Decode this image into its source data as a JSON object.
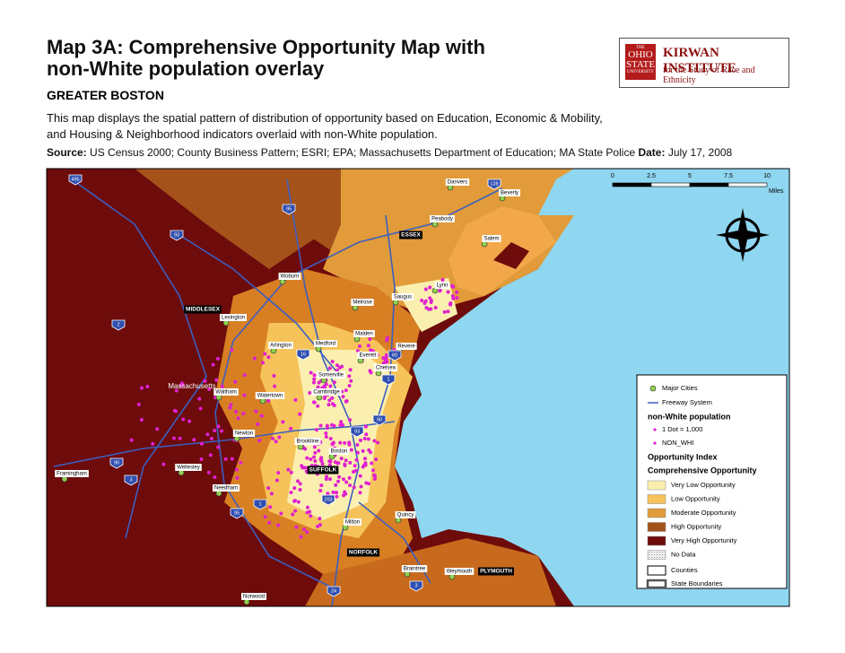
{
  "header": {
    "title_line1": "Map 3A: Comprehensive Opportunity Map with",
    "title_line2": "non-White population overlay",
    "region": "GREATER BOSTON",
    "description_line1": "This map displays the spatial pattern of distribution of opportunity based on Education, Economic & Mobility,",
    "description_line2": "and Housing & Neighborhood indicators overlaid with non-White population.",
    "source_label": "Source:",
    "source_text": "US Census 2000; County Business Pattern; ESRI; EPA; Massachusetts Department of Education; MA State Police",
    "date_label": "Date:",
    "date_text": "July 17, 2008"
  },
  "logo": {
    "top": "THE",
    "university": "OHIO",
    "university2": "STATE",
    "bottom": "UNIVERSITY",
    "name": "KIRWAN INSTITUTE",
    "subtitle": "for the Study of Race and Ethnicity"
  },
  "map": {
    "places": [
      "Danvers",
      "Beverly",
      "Peabody",
      "Salem",
      "ESSEX",
      "Woburn",
      "Lynn",
      "Saugus",
      "Melrose",
      "MIDDLESEX",
      "Lexington",
      "Malden",
      "Arlington",
      "Medford",
      "Revere",
      "Everett",
      "Chelsea",
      "Somerville",
      "Cambridge",
      "Massachusetts",
      "Waltham",
      "Watertown",
      "Newton",
      "Brookline",
      "Boston",
      "SUFFOLK",
      "Framingham",
      "Wellesley",
      "Needham",
      "Milton",
      "Quincy",
      "NORFOLK",
      "Braintree",
      "Weymouth",
      "PLYMOUTH",
      "Norwood"
    ],
    "routes": [
      "495",
      "128",
      "95",
      "93",
      "2",
      "1",
      "16",
      "60",
      "90",
      "93",
      "90",
      "3",
      "95",
      "1",
      "203",
      "24",
      "3"
    ]
  },
  "scale": {
    "ticks": [
      "0",
      "2.5",
      "5",
      "7.5",
      "10"
    ],
    "unit": "Miles"
  },
  "legend": {
    "major_cities": "Major Cities",
    "freeway": "Freeway System",
    "population_title": "non-White population",
    "dot": "1 Dot = 1,000",
    "non_white": "NON_WHI",
    "index_title": "Opportunity Index",
    "index_subtitle": "Comprehensive Opportunity",
    "classes": [
      "Very Low Opportunity",
      "Low Opportunity",
      "Moderate Opportunity",
      "High Opportunity",
      "Very High Opportunity",
      "No Data"
    ],
    "counties": "Counties",
    "state": "State Boundaries"
  }
}
